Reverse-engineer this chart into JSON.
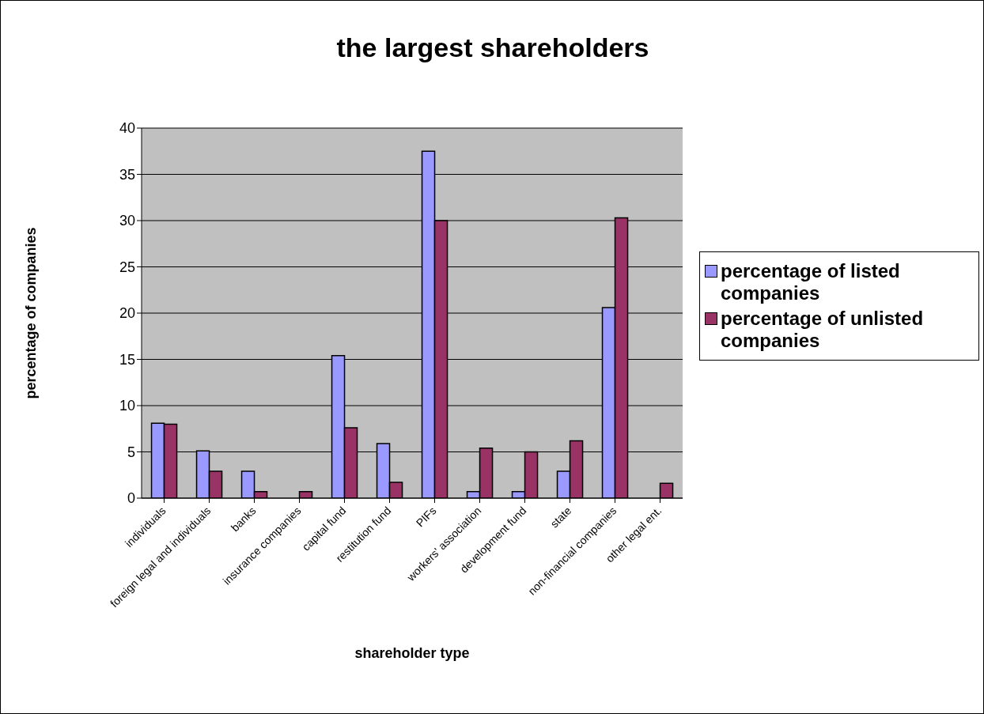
{
  "chart_data": {
    "type": "bar",
    "title": "the largest shareholders",
    "xlabel": "shareholder type",
    "ylabel": "percentage of companies",
    "categories": [
      "individuals",
      "foreign legal and individuals",
      "banks",
      "insurance companies",
      "capital fund",
      "restitution fund",
      "PIFs",
      "workers' association",
      "development fund",
      "state",
      "non-financial companies",
      "other legal ent."
    ],
    "series": [
      {
        "name": "percentage of listed companies",
        "color": "#9999ff",
        "values": [
          8.1,
          5.1,
          2.9,
          0,
          15.4,
          5.9,
          37.5,
          0.7,
          0.7,
          2.9,
          20.6,
          0
        ]
      },
      {
        "name": "percentage of unlisted companies",
        "color": "#993366",
        "values": [
          8.0,
          2.9,
          0.7,
          0.7,
          7.6,
          1.7,
          30.0,
          5.4,
          5.0,
          6.2,
          30.3,
          1.6
        ]
      }
    ],
    "ylim": [
      0,
      40
    ],
    "yticks": [
      0,
      5,
      10,
      15,
      20,
      25,
      30,
      35,
      40
    ],
    "grid": "y",
    "legend": "right"
  }
}
